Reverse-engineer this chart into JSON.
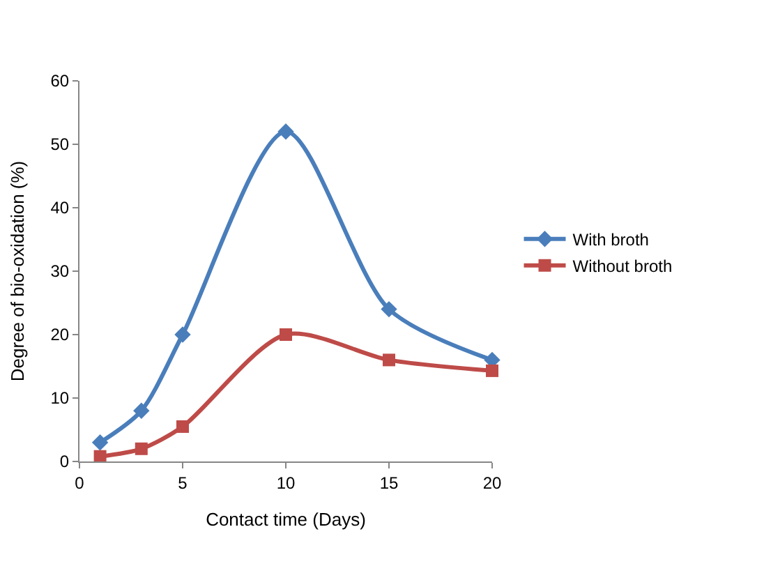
{
  "chart_data": {
    "type": "line",
    "xlabel": "Contact time (Days)",
    "ylabel": "Degree of bio-oxidation (%)",
    "x": [
      1,
      3,
      5,
      10,
      15,
      20
    ],
    "series": [
      {
        "name": "With broth",
        "color": "#4a7ebb",
        "marker": "diamond",
        "values": [
          3,
          8,
          20,
          52,
          24,
          16
        ]
      },
      {
        "name": "Without broth",
        "color": "#be4b48",
        "marker": "square",
        "values": [
          0.8,
          2,
          5.5,
          20,
          16,
          14.3
        ]
      }
    ],
    "xlim": [
      0,
      20
    ],
    "xticks": [
      0,
      5,
      10,
      15,
      20
    ],
    "ylim": [
      0,
      60
    ],
    "yticks": [
      0,
      10,
      20,
      30,
      40,
      50,
      60
    ],
    "legend": "right",
    "line_style": "solid"
  }
}
